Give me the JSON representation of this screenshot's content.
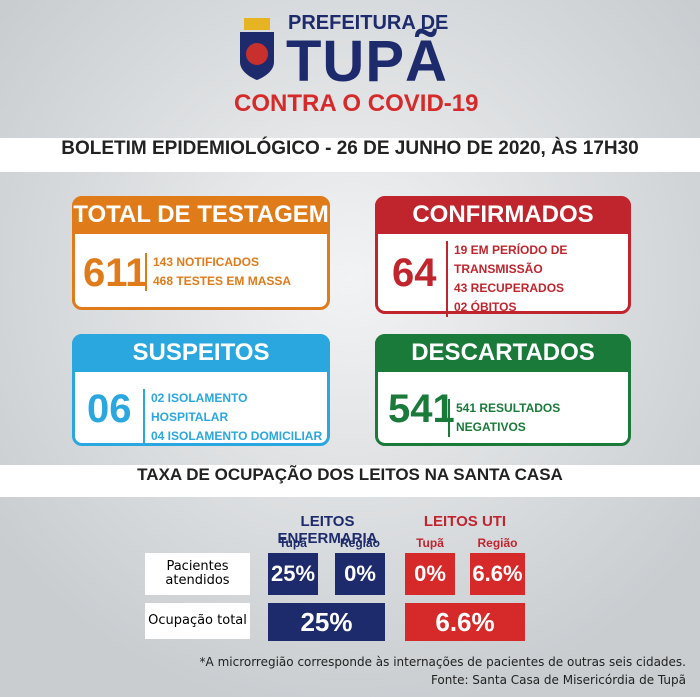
{
  "header": {
    "title_top": "PREFEITURA DE",
    "title_city": "TUPÃ",
    "subtitle": "CONTRA O COVID-19"
  },
  "bulletin": "BOLETIM EPIDEMIOLÓGICO - 26 DE JUNHO DE 2020, ÀS 17H30",
  "cards": [
    {
      "title": "TOTAL DE TESTAGEM",
      "number": "611",
      "lines": [
        "143 NOTIFICADOS",
        "468 TESTES EM MASSA"
      ]
    },
    {
      "title": "CONFIRMADOS",
      "number": "64",
      "lines": [
        "19 EM PERÍODO DE TRANSMISSÃO",
        "43 RECUPERADOS",
        "02 ÓBITOS"
      ]
    },
    {
      "title": "SUSPEITOS",
      "number": "06",
      "lines": [
        "02 ISOLAMENTO HOSPITALAR",
        "04 ISOLAMENTO DOMICILIAR"
      ]
    },
    {
      "title": "DESCARTADOS",
      "number": "541",
      "lines": [
        "541 RESULTADOS NEGATIVOS"
      ]
    }
  ],
  "occupancy": {
    "title": "TAXA DE OCUPAÇÃO DOS LEITOS NA SANTA CASA",
    "groups": [
      {
        "name": "LEITOS ENFERMARIA",
        "columns": [
          "Tupã",
          "Região"
        ]
      },
      {
        "name": "LEITOS UTI",
        "columns": [
          "Tupã",
          "Região"
        ]
      }
    ],
    "rows": [
      {
        "label": "Pacientes atendidos",
        "cells": [
          "25%",
          "0%",
          "0%",
          "6.6%"
        ]
      },
      {
        "label": "Ocupação total",
        "cells": [
          "25%",
          "6.6%"
        ]
      }
    ]
  },
  "footnote": "*A microrregião corresponde às internações de pacientes de outras seis cidades.",
  "source": "Fonte: Santa Casa de Misericórdia de Tupã"
}
